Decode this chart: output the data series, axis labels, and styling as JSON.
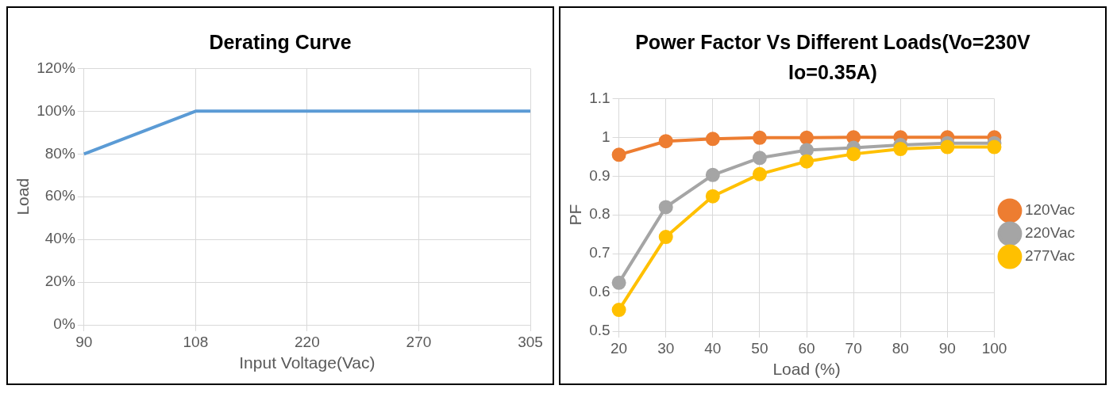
{
  "chart_data": [
    {
      "type": "line",
      "title": "Derating Curve",
      "xlabel": "Input Voltage(Vac)",
      "ylabel": "Load",
      "categories": [
        "90",
        "108",
        "220",
        "270",
        "305"
      ],
      "values": [
        80,
        100,
        100,
        100,
        100
      ],
      "color": "#5b9bd5",
      "ylim": [
        0,
        120
      ],
      "yticks": [
        {
          "value": 0,
          "label": "0%"
        },
        {
          "value": 20,
          "label": "20%"
        },
        {
          "value": 40,
          "label": "40%"
        },
        {
          "value": 60,
          "label": "60%"
        },
        {
          "value": 80,
          "label": "80%"
        },
        {
          "value": 100,
          "label": "100%"
        },
        {
          "value": 120,
          "label": "120%"
        }
      ],
      "grid": true,
      "legend": false,
      "marker": "none",
      "line_style": "solid"
    },
    {
      "type": "line",
      "title": "Power Factor Vs Different Loads(Vo=230V Io=0.35A)",
      "xlabel": "Load (%)",
      "ylabel": "PF",
      "categories": [
        "20",
        "30",
        "40",
        "50",
        "60",
        "70",
        "80",
        "90",
        "100"
      ],
      "series": [
        {
          "name": "120Vac",
          "color": "#ed7d31",
          "values": [
            0.955,
            0.99,
            0.996,
            0.999,
            0.999,
            1.0,
            1.0,
            1.0,
            1.0
          ]
        },
        {
          "name": "220Vac",
          "color": "#a5a5a5",
          "values": [
            0.625,
            0.82,
            0.903,
            0.947,
            0.967,
            0.973,
            0.98,
            0.985,
            0.985
          ]
        },
        {
          "name": "277Vac",
          "color": "#ffc000",
          "values": [
            0.555,
            0.743,
            0.848,
            0.905,
            0.938,
            0.957,
            0.97,
            0.975,
            0.975
          ]
        }
      ],
      "ylim": [
        0.5,
        1.1
      ],
      "yticks": [
        0.5,
        0.6,
        0.7,
        0.8,
        0.9,
        1,
        1.1
      ],
      "grid": true,
      "legend": "right",
      "marker": "circle",
      "line_style": "solid"
    }
  ]
}
